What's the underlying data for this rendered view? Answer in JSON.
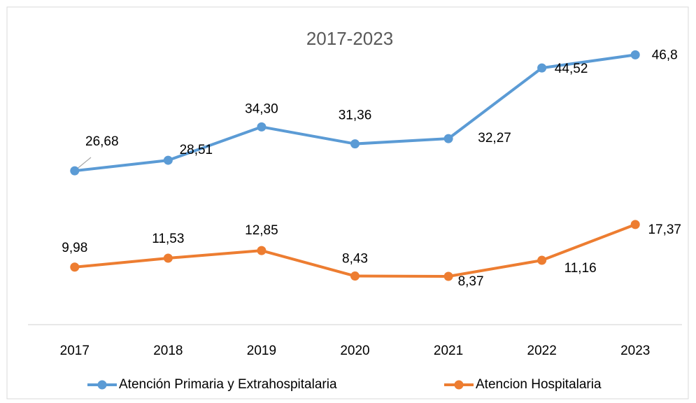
{
  "chart_data": {
    "type": "line",
    "title": "2017-2023",
    "categories": [
      "2017",
      "2018",
      "2019",
      "2020",
      "2021",
      "2022",
      "2023"
    ],
    "series": [
      {
        "name": "Atención Primaria y Extrahospitalaria",
        "color": "#5b9bd5",
        "values": [
          26.68,
          28.51,
          34.3,
          31.36,
          32.27,
          44.52,
          46.8
        ],
        "value_labels": [
          "26,68",
          "28,51",
          "34,30",
          "31,36",
          "32,27",
          "44,52",
          "46,8"
        ]
      },
      {
        "name": "Atencion Hospitalaria",
        "color": "#ed7d31",
        "values": [
          9.98,
          11.53,
          12.85,
          8.43,
          8.37,
          11.16,
          17.37
        ],
        "value_labels": [
          "9,98",
          "11,53",
          "12,85",
          "8,43",
          "8,37",
          "11,16",
          "17,37"
        ]
      }
    ],
    "ylim": [
      0,
      50
    ],
    "legend": "bottom"
  }
}
